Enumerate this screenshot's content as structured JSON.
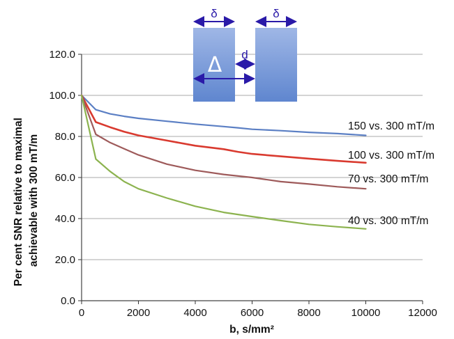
{
  "chart_data": {
    "type": "line",
    "xlabel": "b, s/mm²",
    "ylabel": [
      "Per cent SNR relative to maximal",
      "achievable with 300 mT/m"
    ],
    "xlim": [
      0,
      12000
    ],
    "ylim": [
      0,
      120
    ],
    "x_ticks": [
      "0",
      "2000",
      "4000",
      "6000",
      "8000",
      "10000",
      "12000"
    ],
    "y_ticks": [
      "0.0",
      "20.0",
      "40.0",
      "60.0",
      "80.0",
      "100.0",
      "120.0"
    ],
    "grid": "horizontal",
    "series": [
      {
        "name": "150 vs. 300 mT/m",
        "color": "#5b7fc4",
        "x": [
          0,
          500,
          1000,
          1500,
          2000,
          3000,
          4000,
          5000,
          5500,
          6000,
          7000,
          8000,
          9000,
          10000
        ],
        "y": [
          100,
          93,
          91,
          89.8,
          88.8,
          87.4,
          86.0,
          84.8,
          84.2,
          83.5,
          82.8,
          82.0,
          81.4,
          80.5
        ]
      },
      {
        "name": "100 vs. 300 mT/m",
        "color": "#d93a2f",
        "x": [
          0,
          500,
          1000,
          1500,
          2000,
          3000,
          4000,
          5000,
          5500,
          6000,
          7000,
          8000,
          9000,
          10000
        ],
        "y": [
          100,
          87,
          84.5,
          82.3,
          80.5,
          78.0,
          75.5,
          73.8,
          72.5,
          71.5,
          70.3,
          69.2,
          68.1,
          67.2
        ]
      },
      {
        "name": "70 vs. 300 mT/m",
        "color": "#9e5a5a",
        "x": [
          0,
          500,
          1000,
          1500,
          2000,
          3000,
          4000,
          5000,
          6000,
          7000,
          8000,
          9000,
          10000
        ],
        "y": [
          100,
          81,
          77,
          74,
          71,
          66.5,
          63.5,
          61.5,
          60,
          58,
          56.8,
          55.5,
          54.5
        ]
      },
      {
        "name": "40 vs. 300 mT/m",
        "color": "#8cb34f",
        "x": [
          0,
          500,
          1000,
          1500,
          2000,
          3000,
          4000,
          5000,
          6000,
          7000,
          8000,
          9000,
          10000
        ],
        "y": [
          100,
          69,
          63,
          58,
          54.5,
          50,
          46,
          43,
          41,
          39,
          37.2,
          36,
          35
        ]
      }
    ],
    "inset": {
      "delta_small": "δ",
      "delta_large": "Δ",
      "d_label": "d"
    }
  }
}
